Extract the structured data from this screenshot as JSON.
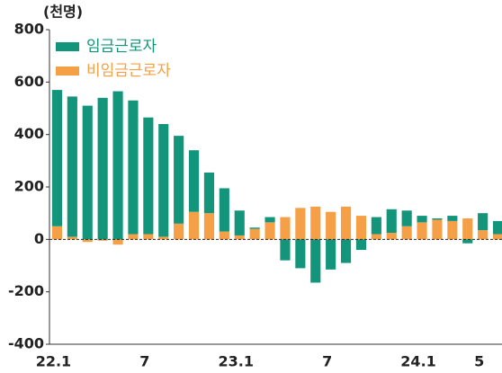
{
  "chart_data": {
    "type": "stacked_bar",
    "unit_label": "(천명)",
    "categories": [
      "22.1",
      null,
      null,
      null,
      null,
      null,
      "7",
      null,
      null,
      null,
      null,
      null,
      "23.1",
      null,
      null,
      null,
      null,
      null,
      "7",
      null,
      null,
      null,
      null,
      null,
      "24.1",
      null,
      null,
      null,
      "5",
      null
    ],
    "series": [
      {
        "name": "임금근로자",
        "color": "#13957c",
        "values": [
          520,
          535,
          510,
          540,
          565,
          510,
          445,
          430,
          335,
          235,
          155,
          165,
          95,
          5,
          20,
          -80,
          -110,
          -165,
          -115,
          -90,
          -40,
          65,
          90,
          60,
          25,
          5,
          20,
          -15,
          65,
          50
        ]
      },
      {
        "name": "비임금근로자",
        "color": "#f5a046",
        "values": [
          50,
          10,
          -10,
          -5,
          -20,
          20,
          20,
          10,
          60,
          105,
          100,
          30,
          15,
          40,
          65,
          85,
          120,
          125,
          105,
          125,
          90,
          20,
          25,
          50,
          65,
          75,
          70,
          80,
          35,
          20
        ]
      }
    ],
    "ylim": [
      -400,
      800
    ],
    "yticks": [
      800,
      600,
      400,
      200,
      0,
      -200,
      -400
    ],
    "legend": "upper left"
  }
}
